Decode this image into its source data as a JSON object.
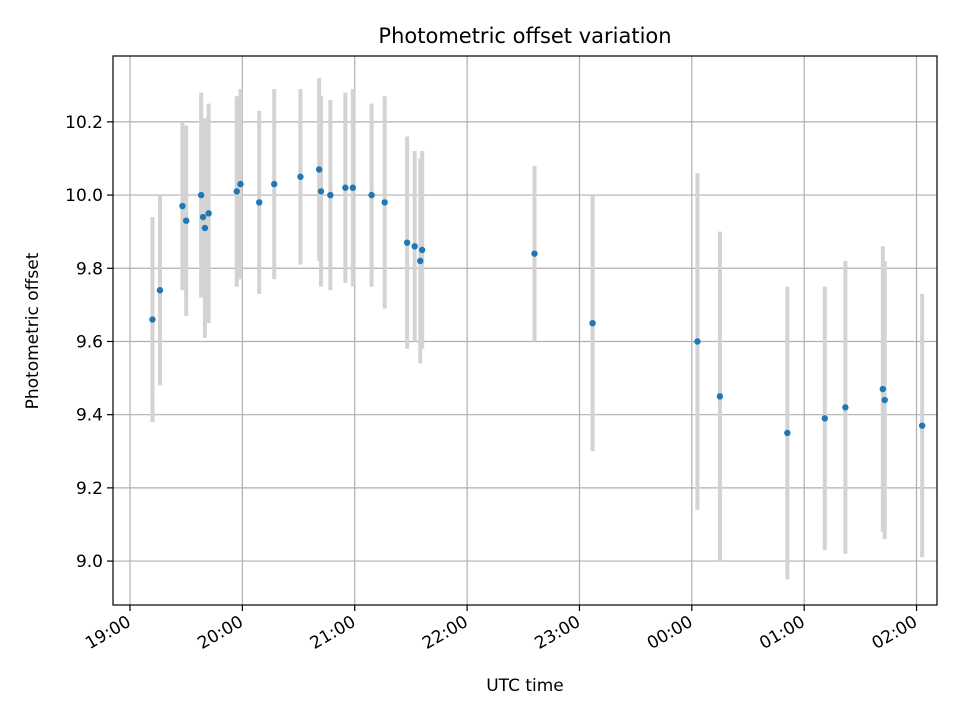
{
  "chart_data": {
    "type": "scatter",
    "title": "Photometric offset variation",
    "xlabel": "UTC time",
    "ylabel": "Photometric offset",
    "x_is_time": true,
    "xlim": [
      "19:00",
      "02:20"
    ],
    "ylim": [
      8.88,
      10.38
    ],
    "x_ticks": [
      "19:00",
      "20:00",
      "21:00",
      "22:00",
      "23:00",
      "00:00",
      "01:00",
      "02:00"
    ],
    "y_ticks": [
      "9.0",
      "9.2",
      "9.4",
      "9.6",
      "9.8",
      "10.0",
      "10.2"
    ],
    "grid": true,
    "marker_color": "#1f77b4",
    "errorbar_color": "#d3d3d3",
    "points": [
      {
        "t": "19:12",
        "y": 9.66,
        "err": 0.28
      },
      {
        "t": "19:16",
        "y": 9.74,
        "err": 0.26
      },
      {
        "t": "19:28",
        "y": 9.97,
        "err": 0.23
      },
      {
        "t": "19:30",
        "y": 9.93,
        "err": 0.26
      },
      {
        "t": "19:38",
        "y": 10.0,
        "err": 0.28
      },
      {
        "t": "19:39",
        "y": 9.94,
        "err": 0.22
      },
      {
        "t": "19:40",
        "y": 9.91,
        "err": 0.3
      },
      {
        "t": "19:42",
        "y": 9.95,
        "err": 0.3
      },
      {
        "t": "19:57",
        "y": 10.01,
        "err": 0.26
      },
      {
        "t": "19:59",
        "y": 10.03,
        "err": 0.26
      },
      {
        "t": "20:09",
        "y": 9.98,
        "err": 0.25
      },
      {
        "t": "20:17",
        "y": 10.03,
        "err": 0.26
      },
      {
        "t": "20:31",
        "y": 10.05,
        "err": 0.24
      },
      {
        "t": "20:41",
        "y": 10.07,
        "err": 0.25
      },
      {
        "t": "20:42",
        "y": 10.01,
        "err": 0.26
      },
      {
        "t": "20:47",
        "y": 10.0,
        "err": 0.26
      },
      {
        "t": "20:55",
        "y": 10.02,
        "err": 0.26
      },
      {
        "t": "20:59",
        "y": 10.02,
        "err": 0.27
      },
      {
        "t": "21:09",
        "y": 10.0,
        "err": 0.25
      },
      {
        "t": "21:16",
        "y": 9.98,
        "err": 0.29
      },
      {
        "t": "21:28",
        "y": 9.87,
        "err": 0.29
      },
      {
        "t": "21:32",
        "y": 9.86,
        "err": 0.26
      },
      {
        "t": "21:35",
        "y": 9.82,
        "err": 0.28
      },
      {
        "t": "21:36",
        "y": 9.85,
        "err": 0.27
      },
      {
        "t": "22:36",
        "y": 9.84,
        "err": 0.24
      },
      {
        "t": "23:07",
        "y": 9.65,
        "err": 0.35
      },
      {
        "t": "00:03",
        "y": 9.6,
        "err": 0.46
      },
      {
        "t": "00:15",
        "y": 9.45,
        "err": 0.45
      },
      {
        "t": "00:51",
        "y": 9.35,
        "err": 0.4
      },
      {
        "t": "01:11",
        "y": 9.39,
        "err": 0.36
      },
      {
        "t": "01:22",
        "y": 9.42,
        "err": 0.4
      },
      {
        "t": "01:42",
        "y": 9.47,
        "err": 0.39
      },
      {
        "t": "01:43",
        "y": 9.44,
        "err": 0.38
      },
      {
        "t": "02:03",
        "y": 9.37,
        "err": 0.36
      }
    ]
  }
}
